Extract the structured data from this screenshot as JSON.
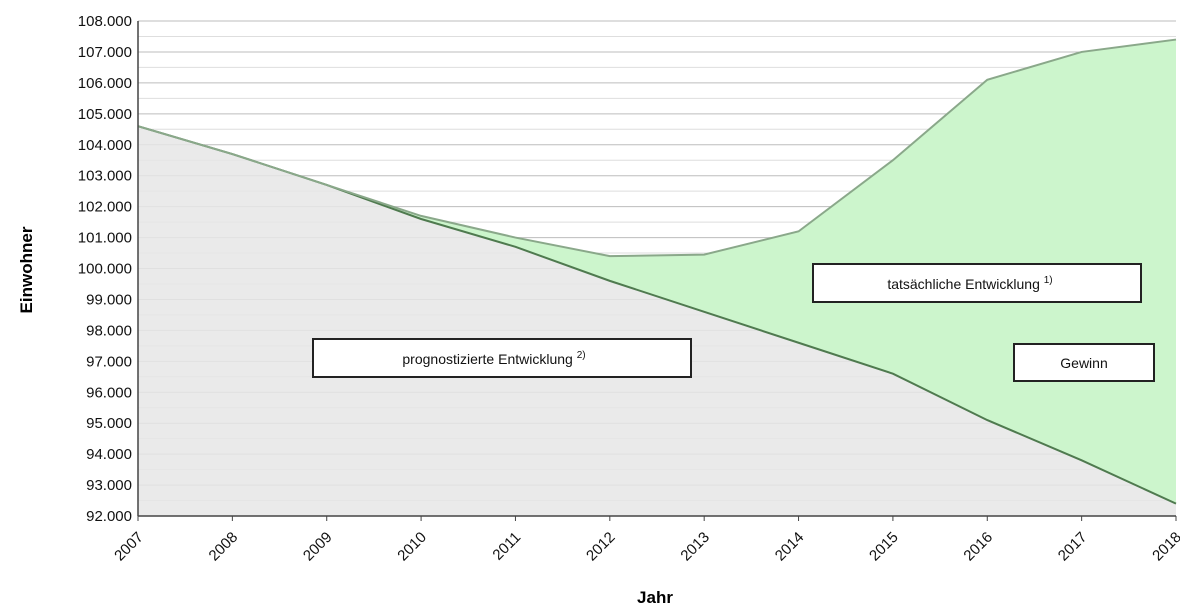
{
  "chart_data": {
    "type": "area",
    "x": [
      "2007",
      "2008",
      "2009",
      "2010",
      "2011",
      "2012",
      "2013",
      "2014",
      "2015",
      "2016",
      "2017",
      "2018"
    ],
    "series": [
      {
        "name": "prognostizierte Entwicklung",
        "values": [
          104600,
          103700,
          102700,
          101600,
          100700,
          99600,
          98600,
          97600,
          96600,
          95100,
          93800,
          92400
        ]
      },
      {
        "name": "tatsächliche Entwicklung",
        "values": [
          104600,
          103700,
          102700,
          101700,
          101000,
          100400,
          100450,
          101200,
          103500,
          106100,
          107000,
          107400
        ]
      }
    ],
    "ylim": [
      92000,
      108000
    ],
    "yticks": [
      "92.000",
      "93.000",
      "94.000",
      "95.000",
      "96.000",
      "97.000",
      "98.000",
      "99.000",
      "100.000",
      "101.000",
      "102.000",
      "103.000",
      "104.000",
      "105.000",
      "106.000",
      "107.000",
      "108.000"
    ],
    "xlabel": "Jahr",
    "ylabel": "Einwohner",
    "grid": true,
    "annotations": {
      "prognose_label": "prognostizierte Entwicklung",
      "prognose_footnote": "2)",
      "actual_label": "tatsächliche Entwicklung",
      "actual_footnote": "1)",
      "gain_label": "Gewinn"
    },
    "colors": {
      "forecast_fill": "#e6e6e6",
      "gain_fill": "#ccf5cc",
      "forecast_line": "#4f7a4f",
      "actual_line": "#8aa88a",
      "grid": "#bdbdbd"
    }
  }
}
